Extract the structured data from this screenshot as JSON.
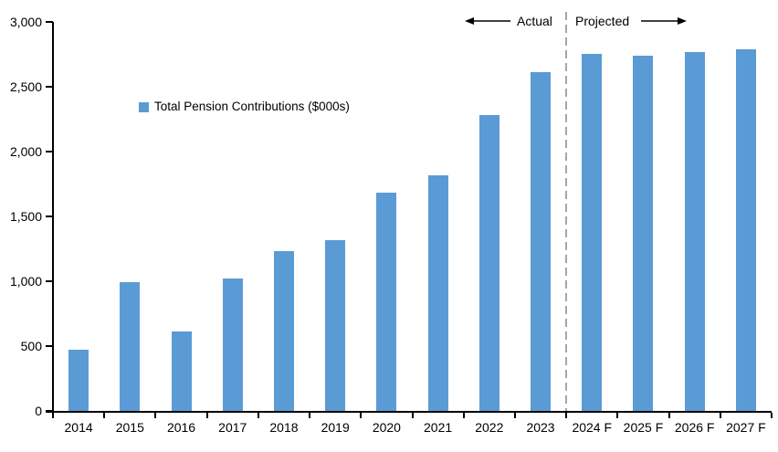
{
  "chart_data": {
    "type": "bar",
    "title": "",
    "legend_label": "Total Pension Contributions ($000s)",
    "categories": [
      "2014",
      "2015",
      "2016",
      "2017",
      "2018",
      "2019",
      "2020",
      "2021",
      "2022",
      "2023",
      "2024 F",
      "2025 F",
      "2026 F",
      "2027 F"
    ],
    "values": [
      470,
      990,
      610,
      1020,
      1230,
      1320,
      1680,
      1820,
      2280,
      2610,
      2750,
      2740,
      2770,
      2790
    ],
    "xlabel": "",
    "ylabel": "",
    "ylim": [
      0,
      3000
    ],
    "ytick_step": 500,
    "ytick_labels": [
      "0",
      "500",
      "1,000",
      "1,500",
      "2,000",
      "2,500",
      "3,000"
    ],
    "grid": false,
    "legend_position": "inside-upper-left",
    "bar_color": "#5B9BD5",
    "axis_color": "#000000",
    "divider_color": "#A6A6A6",
    "divider_after_category_index": 9,
    "annotations": {
      "actual": "Actual",
      "projected": "Projected"
    }
  }
}
